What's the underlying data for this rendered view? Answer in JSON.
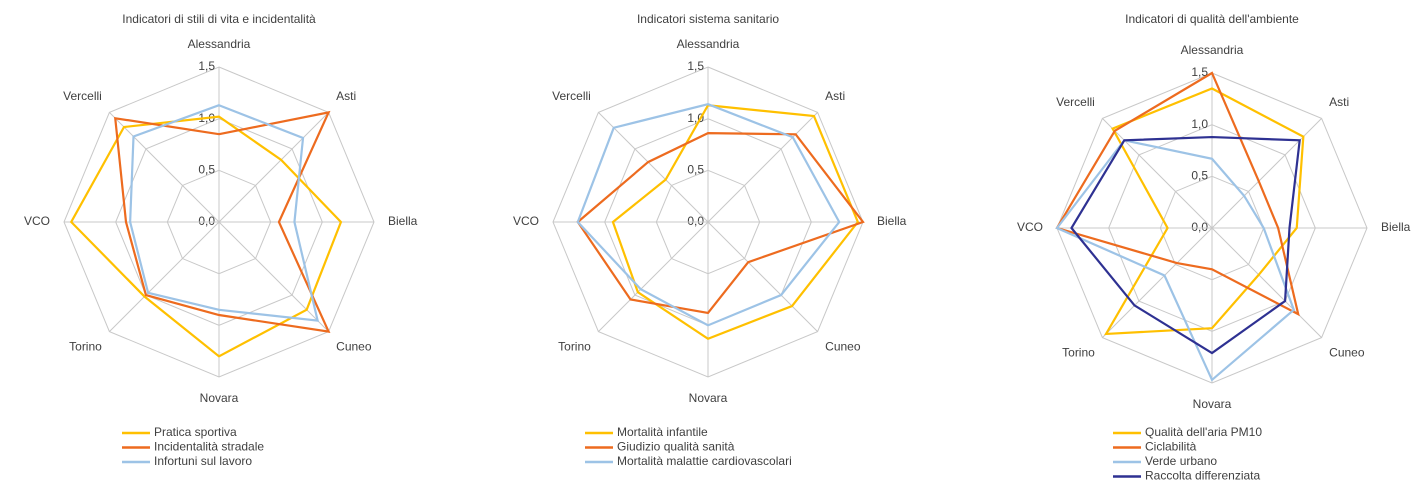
{
  "chart_data": [
    {
      "type": "radar",
      "title": "Indicatori di stili di vita e incidentalità",
      "categories": [
        "Alessandria",
        "Asti",
        "Biella",
        "Cuneo",
        "Novara",
        "Torino",
        "VCO",
        "Vercelli"
      ],
      "rlim": [
        0,
        1.5
      ],
      "rticks": [
        {
          "value": 0,
          "label": "0,0"
        },
        {
          "value": 0.5,
          "label": "0,5"
        },
        {
          "value": 1,
          "label": "1,0"
        },
        {
          "value": 1.5,
          "label": "1,5"
        }
      ],
      "series": [
        {
          "name": "Pratica sportiva",
          "color": "#FFC000",
          "values": [
            1.02,
            0.85,
            1.18,
            1.2,
            1.3,
            1.02,
            1.43,
            1.3
          ]
        },
        {
          "name": "Incidentalità stradale",
          "color": "#ED6B1F",
          "values": [
            0.85,
            1.5,
            0.58,
            1.5,
            0.9,
            1.0,
            0.9,
            1.42
          ]
        },
        {
          "name": "Infortuni sul lavoro",
          "color": "#9DC3E6",
          "values": [
            1.13,
            1.15,
            0.73,
            1.35,
            0.85,
            0.97,
            0.86,
            1.17
          ]
        }
      ]
    },
    {
      "type": "radar",
      "title": "Indicatori sistema sanitario",
      "categories": [
        "Alessandria",
        "Asti",
        "Biella",
        "Cuneo",
        "Novara",
        "Torino",
        "VCO",
        "Vercelli"
      ],
      "rlim": [
        0,
        1.5
      ],
      "rticks": [
        {
          "value": 0,
          "label": "0,0"
        },
        {
          "value": 0.5,
          "label": "0,5"
        },
        {
          "value": 1,
          "label": "1,0"
        },
        {
          "value": 1.5,
          "label": "1,5"
        }
      ],
      "series": [
        {
          "name": "Mortalità infantile",
          "color": "#FFC000",
          "values": [
            1.13,
            1.45,
            1.45,
            1.15,
            1.13,
            0.96,
            0.92,
            0.58
          ]
        },
        {
          "name": "Giudizio qualità sanità",
          "color": "#ED6B1F",
          "values": [
            0.86,
            1.2,
            1.5,
            0.55,
            0.88,
            1.06,
            1.26,
            0.82
          ]
        },
        {
          "name": "Mortalità malattie cardiovascolari",
          "color": "#9DC3E6",
          "values": [
            1.14,
            1.16,
            1.27,
            1.0,
            1.0,
            0.92,
            1.26,
            1.29
          ]
        }
      ]
    },
    {
      "type": "radar",
      "title": "Indicatori di qualità dell'ambiente",
      "categories": [
        "Alessandria",
        "Asti",
        "Biella",
        "Cuneo",
        "Novara",
        "Torino",
        "VCO",
        "Vercelli"
      ],
      "rlim": [
        0,
        1.5
      ],
      "rticks": [
        {
          "value": 0,
          "label": "0,0"
        },
        {
          "value": 0.5,
          "label": "0,5"
        },
        {
          "value": 1,
          "label": "1,0"
        },
        {
          "value": 1.5,
          "label": "1,5"
        }
      ],
      "series": [
        {
          "name": "Qualità dell'aria PM10",
          "color": "#FFC000",
          "values": [
            1.35,
            1.25,
            0.82,
            0.64,
            0.97,
            1.45,
            0.43,
            1.36
          ]
        },
        {
          "name": "Ciclabilità",
          "color": "#ED6B1F",
          "values": [
            1.5,
            0.64,
            0.64,
            1.18,
            0.4,
            0.48,
            1.5,
            1.33
          ]
        },
        {
          "name": "Verde urbano",
          "color": "#9DC3E6",
          "values": [
            0.67,
            0.44,
            0.5,
            1.12,
            1.47,
            0.65,
            1.5,
            1.2
          ]
        },
        {
          "name": "Raccolta differenziata",
          "color": "#2E3192",
          "values": [
            0.88,
            1.2,
            0.75,
            1.0,
            1.21,
            1.06,
            1.36,
            1.2
          ]
        }
      ]
    }
  ]
}
